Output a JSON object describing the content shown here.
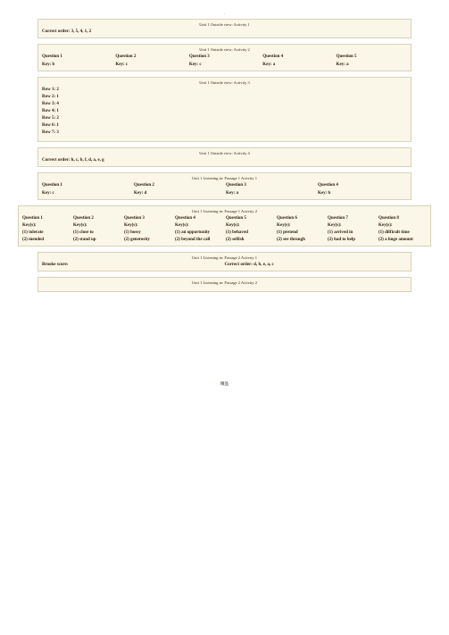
{
  "dot": ".",
  "footer": "精品",
  "b1": {
    "hdr": "Unit 1 Outside view: Activity 1",
    "order": "Correct order: 3, 5, 4, 1, 2"
  },
  "b2": {
    "hdr": "Unit 1 Outside view: Activity 2",
    "q": [
      "Question 1",
      "Question 2",
      "Question 3",
      "Question 4",
      "Question 5"
    ],
    "k": [
      "Key: b",
      "Key: c",
      "Key: c",
      "Key: a",
      "Key: a"
    ]
  },
  "b3": {
    "hdr": "Unit 1 Outside view: Activity 3",
    "rows": [
      "Row 1: 2",
      "Row 2: 1",
      "Row 3: 4",
      "Row 4: 1",
      "Row 5: 2",
      "Row 6: 1",
      "Row 7: 3"
    ]
  },
  "b4": {
    "hdr": "Unit 1 Outside view: Activity 4",
    "order": "Correct order: h, c, b, f, d, a, e, g"
  },
  "b5": {
    "hdr": "Unit 1 Listening in: Passage 1 Activity 1",
    "q": [
      "Question 1",
      "Question 2",
      "Question 3",
      "Question 4"
    ],
    "k": [
      "Key: c",
      "Key: d",
      "Key: a",
      "Key: b"
    ]
  },
  "b6": {
    "hdr": "Unit 1 Listening in: Passage 1 Activity 2",
    "q": [
      "Question 1",
      "Question 2",
      "Question 3",
      "Question 4",
      "Question 5",
      "Question 6",
      "Question 7",
      "Question 8"
    ],
    "k": [
      "Key(s):",
      "Key(s):",
      "Key(s):",
      "Key(s):",
      "Key(s):",
      "Key(s):",
      "Key(s):",
      "Key(s):"
    ],
    "a1": [
      "(1) tolerate",
      "(1) close to",
      "(1) bossy",
      "(1) an opportunity",
      "(1) behaved",
      "(1) pretend",
      "(1) arrived in",
      "(1) difficult time"
    ],
    "a2": [
      "(2) mended",
      "(2) stand up",
      "(2) generosity",
      "(2) beyond the call",
      "(2) selfish",
      "(2) see through",
      "(2) had to help",
      "(2) a huge amount"
    ]
  },
  "b7": {
    "hdr": "Unit 1 Listening in: Passage 2 Activity 1",
    "left": "Brooke score:",
    "right": "Correct order: d, b, e, a, c"
  },
  "b8": {
    "hdr": "Unit 1 Listening in: Passage 2 Activity 2"
  }
}
